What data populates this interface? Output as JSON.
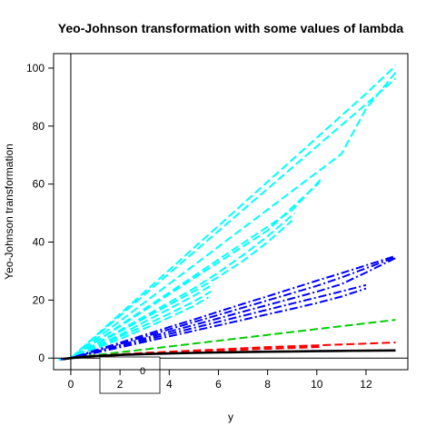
{
  "chart_data": {
    "type": "line",
    "title": "Yeo-Johnson transformation with some values of lambda",
    "xlabel": "y",
    "ylabel": "Yeo-Johnson transformation",
    "xlim": [
      -0.7,
      13.7
    ],
    "ylim": [
      -4,
      105
    ],
    "x_ticks": [
      0,
      2,
      4,
      6,
      8,
      10,
      12
    ],
    "y_ticks": [
      0,
      20,
      40,
      60,
      80,
      100
    ],
    "grid": false,
    "reference_lines": {
      "vertical_at_x": 0,
      "horizontal_at_y": 0
    },
    "legend": {
      "placement": "bottom-left",
      "entries": [
        "0"
      ]
    },
    "series": [
      {
        "color": "#00FFFF",
        "style": "dashed",
        "lines": [
          {
            "x": [
              -0.5,
              0,
              1,
              2,
              3,
              4,
              5,
              6,
              7,
              8,
              9,
              10,
              11,
              12,
              13.2
            ],
            "y": [
              -0.6,
              0,
              7.6,
              15.2,
              22.8,
              30.4,
              38,
              45.6,
              53.2,
              60.8,
              68.4,
              76,
              83.6,
              91.2,
              100.8
            ]
          },
          {
            "x": [
              -0.4,
              0,
              1,
              2,
              3,
              4,
              5,
              6,
              7,
              8,
              9,
              10,
              11,
              12,
              13.2
            ],
            "y": [
              -0.5,
              0,
              7.3,
              14.6,
              21.9,
              29.2,
              36.5,
              43.8,
              51.1,
              58.4,
              65.7,
              73,
              80.3,
              87.6,
              96.4
            ]
          },
          {
            "x": [
              -0.3,
              0,
              1,
              2,
              3,
              4,
              5,
              6,
              7,
              8,
              9,
              10,
              11,
              12,
              13.2
            ],
            "y": [
              -0.4,
              0,
              6.4,
              12.8,
              19.2,
              25.6,
              32,
              38.4,
              44.8,
              51.2,
              57.6,
              64,
              70.4,
              86,
              98.5
            ]
          },
          {
            "x": [
              -0.3,
              0,
              1,
              2,
              3,
              4,
              5,
              6,
              7,
              8,
              9,
              10.2
            ],
            "y": [
              -0.4,
              0,
              5.6,
              11.3,
              17,
              22.6,
              28.3,
              34,
              39.6,
              45.3,
              51,
              62
            ]
          },
          {
            "x": [
              -0.3,
              0,
              1,
              2,
              3,
              4,
              5,
              6,
              7,
              8,
              9,
              10.1
            ],
            "y": [
              -0.4,
              0,
              5.5,
              11,
              16.5,
              22,
              27.5,
              33,
              38.5,
              44,
              52,
              60.5
            ]
          },
          {
            "x": [
              -0.2,
              0,
              1,
              2,
              3,
              4,
              5,
              6,
              7,
              8,
              9.1
            ],
            "y": [
              -0.3,
              0,
              4.8,
              9.6,
              14.4,
              19.2,
              24,
              29.5,
              35.5,
              42,
              50
            ]
          },
          {
            "x": [
              -0.2,
              0,
              1,
              2,
              3,
              4,
              5,
              6,
              7,
              8,
              9.0
            ],
            "y": [
              -0.3,
              0,
              4.6,
              9.2,
              13.8,
              18.4,
              23,
              28,
              33.5,
              40,
              47.5
            ]
          },
          {
            "x": [
              -0.2,
              0,
              1,
              2,
              3,
              4,
              5,
              5.8
            ],
            "y": [
              -0.3,
              0,
              4,
              8,
              12.5,
              17,
              21.5,
              25.5
            ]
          },
          {
            "x": [
              -0.2,
              0,
              1,
              2,
              3,
              4,
              5,
              5.7
            ],
            "y": [
              -0.3,
              0,
              3.6,
              7.4,
              11.3,
              15.3,
              19.5,
              23
            ]
          },
          {
            "x": [
              -0.2,
              0,
              1,
              2,
              3,
              4,
              5,
              5.6
            ],
            "y": [
              -0.3,
              0,
              3.2,
              6.6,
              10.2,
              14,
              18,
              21
            ]
          }
        ]
      },
      {
        "color": "#0000FF",
        "style": "dashdot",
        "lines": [
          {
            "x": [
              -0.4,
              0,
              1,
              2,
              3,
              4,
              5,
              6,
              7,
              8,
              9,
              10,
              11,
              12,
              13.2
            ],
            "y": [
              -0.5,
              0,
              2.7,
              5.3,
              8,
              10.7,
              13.3,
              16,
              18.7,
              21.3,
              24,
              26.7,
              29.3,
              32,
              35.2
            ]
          },
          {
            "x": [
              -0.4,
              0,
              1,
              2,
              3,
              4,
              5,
              6,
              7,
              8,
              9,
              10,
              11,
              12,
              13.2
            ],
            "y": [
              -0.5,
              0,
              2.4,
              4.9,
              7.4,
              9.9,
              12.4,
              14.9,
              17.4,
              19.9,
              22.4,
              24.9,
              27.8,
              31,
              34.8
            ]
          },
          {
            "x": [
              -0.3,
              0,
              1,
              2,
              3,
              4,
              5,
              6,
              7,
              8,
              9,
              10,
              11,
              12,
              13.2
            ],
            "y": [
              -0.4,
              0,
              2.2,
              4.5,
              6.8,
              9.1,
              11.4,
              13.7,
              16,
              18.3,
              20.6,
              22.9,
              25.5,
              29.5,
              34.5
            ]
          },
          {
            "x": [
              -0.3,
              0,
              1,
              2,
              3,
              4,
              5,
              6,
              7,
              8,
              9,
              10,
              11,
              12
            ],
            "y": [
              -0.4,
              0,
              2,
              4.1,
              6.2,
              8.3,
              10.4,
              12.5,
              14.6,
              16.7,
              18.8,
              20.9,
              23,
              25.2
            ]
          },
          {
            "x": [
              -0.3,
              0,
              1,
              2,
              3,
              4,
              5,
              6,
              7,
              8,
              9,
              10,
              11,
              12
            ],
            "y": [
              -0.4,
              0,
              1.8,
              3.7,
              5.6,
              7.5,
              9.4,
              11.3,
              13.2,
              15.1,
              17,
              19,
              21.2,
              24
            ]
          }
        ]
      },
      {
        "color": "#00CD00",
        "style": "dashed",
        "lines": [
          {
            "x": [
              -0.3,
              0,
              1,
              2,
              3,
              4,
              5,
              6,
              7,
              8,
              9,
              10,
              11,
              12,
              13.2
            ],
            "y": [
              -0.3,
              0,
              1,
              2,
              3,
              4,
              5,
              6,
              7,
              8,
              9,
              10,
              11,
              12,
              13.2
            ]
          }
        ]
      },
      {
        "color": "#FF0000",
        "style": "dashed",
        "lines": [
          {
            "x": [
              -0.3,
              0,
              1,
              2,
              3,
              4,
              5,
              6,
              7,
              8,
              9,
              10,
              11,
              12,
              13.2
            ],
            "y": [
              -0.3,
              0,
              0.8,
              1.3,
              1.8,
              2.2,
              2.6,
              3,
              3.4,
              3.8,
              4.1,
              4.4,
              4.7,
              5,
              5.4
            ]
          },
          {
            "x": [
              -0.3,
              0,
              1,
              2,
              3,
              4,
              5,
              6,
              7,
              8,
              9,
              10,
              10.2
            ],
            "y": [
              -0.3,
              0,
              0.7,
              1.2,
              1.6,
              2,
              2.4,
              2.8,
              3.2,
              3.6,
              3.9,
              4.2,
              4.3
            ]
          },
          {
            "x": [
              -0.3,
              0,
              1,
              2,
              3,
              4,
              5,
              6,
              7,
              8,
              9,
              10,
              10.2
            ],
            "y": [
              -0.3,
              0,
              0.6,
              1.1,
              1.5,
              1.9,
              2.3,
              2.6,
              2.9,
              3.2,
              3.5,
              3.8,
              3.9
            ]
          }
        ]
      },
      {
        "color": "#000000",
        "style": "solid",
        "lines": [
          {
            "x": [
              -0.3,
              0,
              1,
              2,
              3,
              4,
              5,
              6,
              7,
              8,
              9,
              10,
              11,
              12,
              13.2
            ],
            "y": [
              -0.3,
              0,
              0.69,
              1.1,
              1.39,
              1.61,
              1.79,
              1.95,
              2.08,
              2.2,
              2.3,
              2.4,
              2.48,
              2.56,
              2.65
            ]
          }
        ]
      }
    ]
  }
}
